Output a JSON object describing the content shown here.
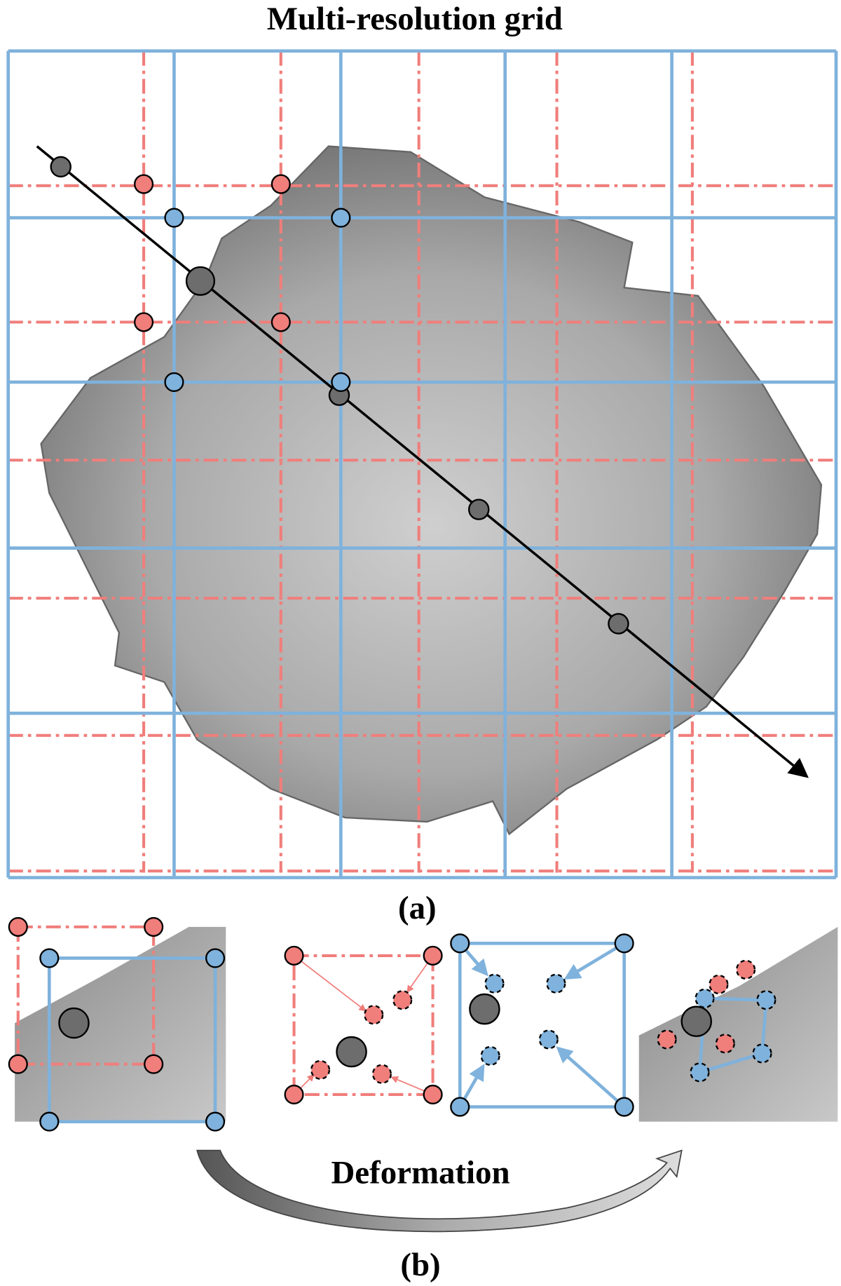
{
  "title": "Multi-resolution grid",
  "panel_a_label": "(a)",
  "deformation_label": "Deformation",
  "panel_b_label": "(b)"
}
